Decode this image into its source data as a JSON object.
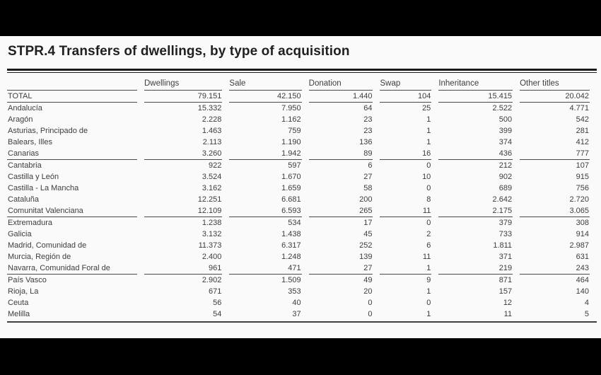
{
  "page": {
    "title": "STPR.4 Transfers of dwellings, by type of acquisition"
  },
  "table": {
    "columns": [
      "Dwellings",
      "Sale",
      "Donation",
      "Swap",
      "Inheritance",
      "Other titles"
    ],
    "total": {
      "label": "TOTAL",
      "values": [
        "79.151",
        "42.150",
        "1.440",
        "104",
        "15.415",
        "20.042"
      ]
    },
    "rows": [
      {
        "label": "Andalucía",
        "values": [
          "15.332",
          "7.950",
          "64",
          "25",
          "2.522",
          "4.771"
        ]
      },
      {
        "label": "Aragón",
        "values": [
          "2.228",
          "1.162",
          "23",
          "1",
          "500",
          "542"
        ]
      },
      {
        "label": "Asturias, Principado de",
        "values": [
          "1.463",
          "759",
          "23",
          "1",
          "399",
          "281"
        ]
      },
      {
        "label": "Balears, Illes",
        "values": [
          "2.113",
          "1.190",
          "136",
          "1",
          "374",
          "412"
        ]
      },
      {
        "label": "Canarias",
        "values": [
          "3.260",
          "1.942",
          "89",
          "16",
          "436",
          "777"
        ]
      },
      {
        "label": "Cantabria",
        "values": [
          "922",
          "597",
          "6",
          "0",
          "212",
          "107"
        ]
      },
      {
        "label": "Castilla y León",
        "values": [
          "3.524",
          "1.670",
          "27",
          "10",
          "902",
          "915"
        ]
      },
      {
        "label": "Castilla - La Mancha",
        "values": [
          "3.162",
          "1.659",
          "58",
          "0",
          "689",
          "756"
        ]
      },
      {
        "label": "Cataluña",
        "values": [
          "12.251",
          "6.681",
          "200",
          "8",
          "2.642",
          "2.720"
        ]
      },
      {
        "label": "Comunitat Valenciana",
        "values": [
          "12.109",
          "6.593",
          "265",
          "11",
          "2.175",
          "3.065"
        ]
      },
      {
        "label": "Extremadura",
        "values": [
          "1.238",
          "534",
          "17",
          "0",
          "379",
          "308"
        ]
      },
      {
        "label": "Galicia",
        "values": [
          "3.132",
          "1.438",
          "45",
          "2",
          "733",
          "914"
        ]
      },
      {
        "label": "Madrid, Comunidad de",
        "values": [
          "11.373",
          "6.317",
          "252",
          "6",
          "1.811",
          "2.987"
        ]
      },
      {
        "label": "Murcia, Región de",
        "values": [
          "2.400",
          "1.248",
          "139",
          "11",
          "371",
          "631"
        ]
      },
      {
        "label": "Navarra, Comunidad Foral de",
        "values": [
          "961",
          "471",
          "27",
          "1",
          "219",
          "243"
        ]
      },
      {
        "label": "País Vasco",
        "values": [
          "2.902",
          "1.509",
          "49",
          "9",
          "871",
          "464"
        ]
      },
      {
        "label": "Rioja, La",
        "values": [
          "671",
          "353",
          "20",
          "1",
          "157",
          "140"
        ]
      },
      {
        "label": "Ceuta",
        "values": [
          "56",
          "40",
          "0",
          "0",
          "12",
          "4"
        ]
      },
      {
        "label": "Melilla",
        "values": [
          "54",
          "37",
          "0",
          "1",
          "11",
          "5"
        ]
      }
    ]
  },
  "colors": {
    "letterbox": "#000000",
    "paper": "#fafafa",
    "text": "#3d3d3d",
    "title": "#1f1f1f",
    "rule": "#4a4a4a"
  }
}
